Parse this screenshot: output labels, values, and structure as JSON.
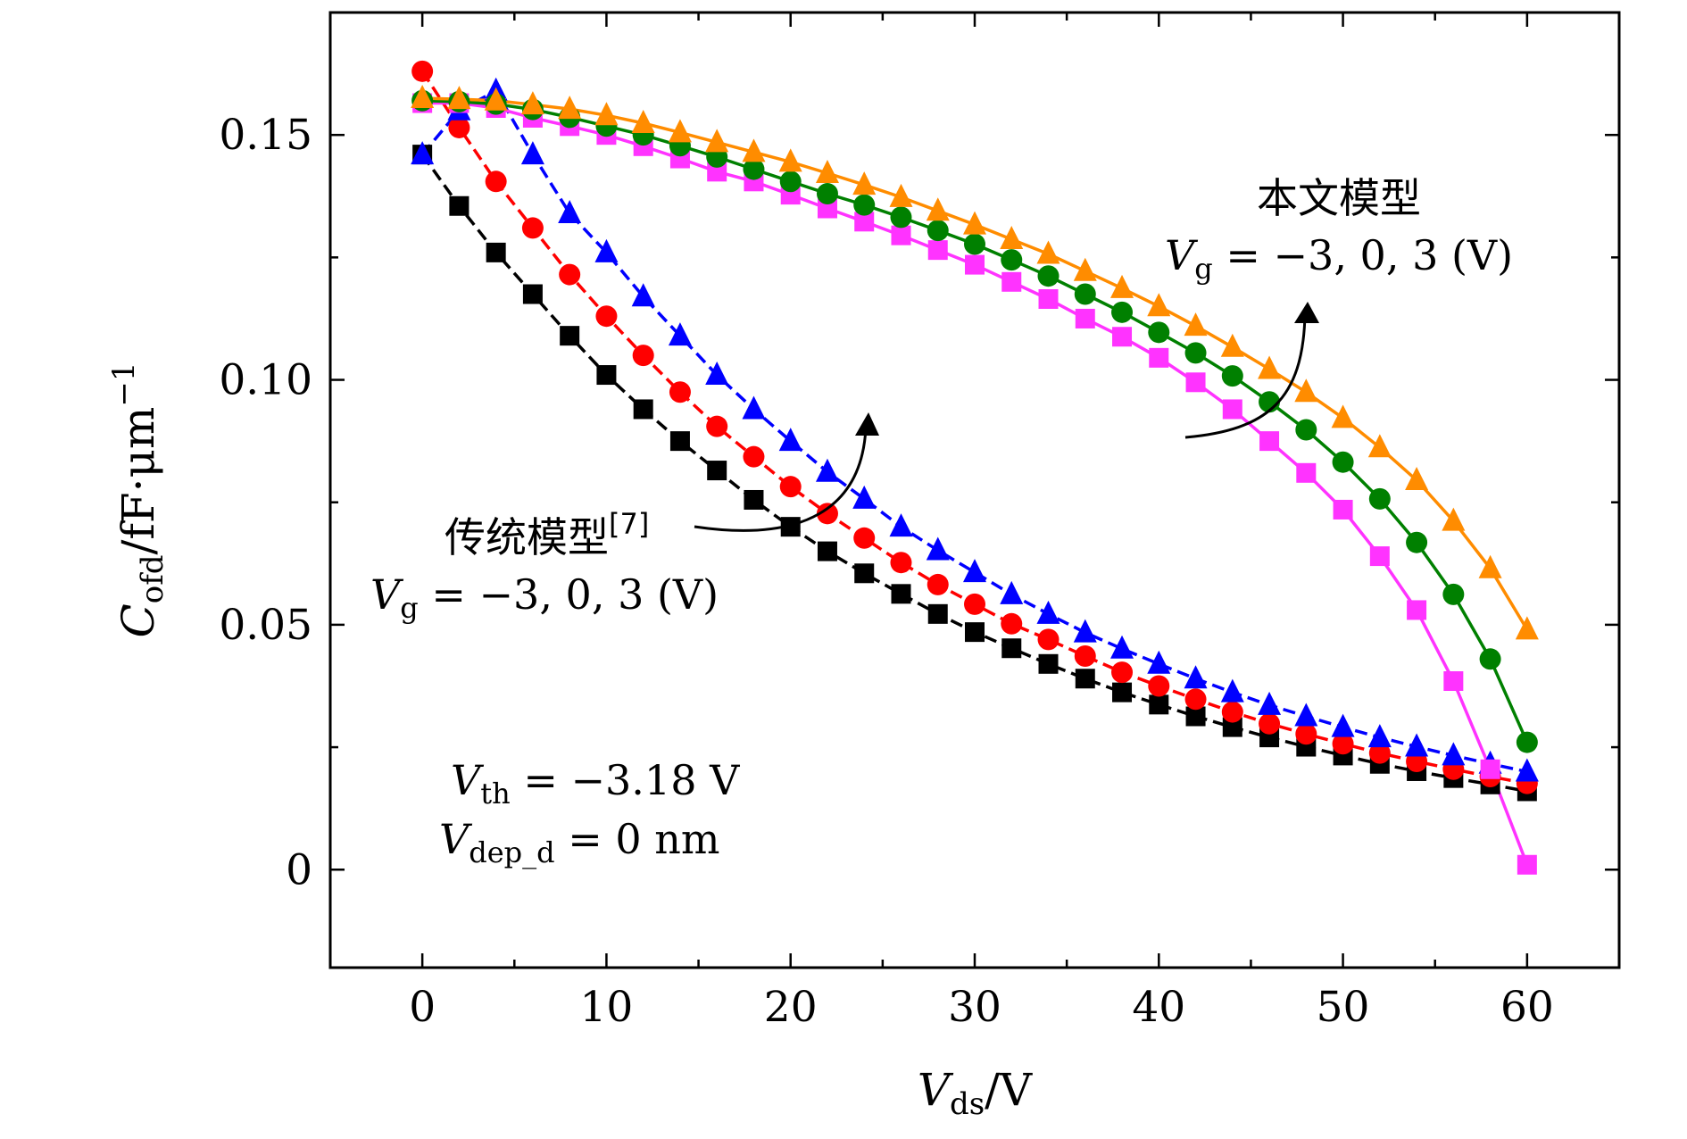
{
  "chart_data": {
    "type": "line",
    "xlabel": {
      "var": "V",
      "sub": "ds",
      "unit": "/V"
    },
    "ylabel": {
      "var": "C",
      "sub": "ofd",
      "unit": "/fF·μm",
      "sup": "−1"
    },
    "xlim": [
      -5,
      65
    ],
    "ylim": [
      -0.02,
      0.175
    ],
    "xticks": [
      0,
      10,
      20,
      30,
      40,
      50,
      60
    ],
    "xtick_labels": [
      "0",
      "10",
      "20",
      "30",
      "40",
      "50",
      "60"
    ],
    "yticks": [
      0,
      0.05,
      0.1,
      0.15
    ],
    "ytick_labels": [
      "0",
      "0.05",
      "0.10",
      "0.15"
    ],
    "x": [
      0,
      2,
      4,
      6,
      8,
      10,
      12,
      14,
      16,
      18,
      20,
      22,
      24,
      26,
      28,
      30,
      32,
      34,
      36,
      38,
      40,
      42,
      44,
      46,
      48,
      50,
      52,
      54,
      56,
      58,
      60
    ],
    "series": [
      {
        "group": "traditional",
        "marker": "square",
        "color": "#000000",
        "dash": true,
        "values": [
          0.146,
          0.1355,
          0.126,
          0.1175,
          0.109,
          0.101,
          0.094,
          0.0875,
          0.0815,
          0.0755,
          0.07,
          0.065,
          0.0605,
          0.0563,
          0.0522,
          0.0485,
          0.0452,
          0.042,
          0.039,
          0.0362,
          0.0337,
          0.0313,
          0.0291,
          0.027,
          0.0251,
          0.0233,
          0.0216,
          0.0201,
          0.0187,
          0.0174,
          0.016
        ]
      },
      {
        "group": "traditional",
        "marker": "circle",
        "color": "#ff0000",
        "dash": true,
        "values": [
          0.163,
          0.1515,
          0.1405,
          0.131,
          0.1215,
          0.113,
          0.105,
          0.0975,
          0.0905,
          0.0843,
          0.0782,
          0.0727,
          0.0677,
          0.0627,
          0.0582,
          0.0542,
          0.0502,
          0.047,
          0.0436,
          0.0403,
          0.0375,
          0.0348,
          0.0322,
          0.0298,
          0.0277,
          0.0257,
          0.0238,
          0.0221,
          0.0205,
          0.019,
          0.0176
        ]
      },
      {
        "group": "traditional",
        "marker": "triangle",
        "color": "#0000ff",
        "dash": true,
        "values": [
          0.146,
          0.155,
          0.159,
          0.146,
          0.134,
          0.126,
          0.117,
          0.109,
          0.101,
          0.094,
          0.0875,
          0.0812,
          0.0757,
          0.07,
          0.0652,
          0.0607,
          0.0562,
          0.0522,
          0.0484,
          0.0451,
          0.042,
          0.039,
          0.0362,
          0.0336,
          0.0313,
          0.0291,
          0.027,
          0.0251,
          0.0233,
          0.0216,
          0.02
        ]
      },
      {
        "group": "proposed",
        "marker": "square",
        "color": "#ff33ff",
        "dash": false,
        "values": [
          0.1565,
          0.1565,
          0.1555,
          0.1535,
          0.1518,
          0.15,
          0.1477,
          0.1452,
          0.1425,
          0.1405,
          0.1378,
          0.135,
          0.1323,
          0.1295,
          0.1265,
          0.1235,
          0.12,
          0.1165,
          0.1125,
          0.1088,
          0.1045,
          0.0995,
          0.094,
          0.0875,
          0.081,
          0.0735,
          0.064,
          0.053,
          0.0385,
          0.0205,
          0.001
        ]
      },
      {
        "group": "proposed",
        "marker": "circle",
        "color": "#008000",
        "dash": false,
        "values": [
          0.157,
          0.1568,
          0.1563,
          0.1552,
          0.1536,
          0.1518,
          0.15,
          0.1478,
          0.1455,
          0.143,
          0.1405,
          0.138,
          0.1357,
          0.1332,
          0.1305,
          0.1277,
          0.1245,
          0.1212,
          0.1175,
          0.1138,
          0.1097,
          0.1055,
          0.1008,
          0.0955,
          0.0898,
          0.0832,
          0.0757,
          0.0668,
          0.0562,
          0.043,
          0.026
        ]
      },
      {
        "group": "proposed",
        "marker": "triangle",
        "color": "#ff8c00",
        "dash": false,
        "values": [
          0.1575,
          0.1573,
          0.157,
          0.1562,
          0.1553,
          0.154,
          0.1524,
          0.1505,
          0.1485,
          0.1465,
          0.1445,
          0.1422,
          0.1398,
          0.1373,
          0.1345,
          0.1317,
          0.1287,
          0.1257,
          0.1222,
          0.1187,
          0.115,
          0.111,
          0.1067,
          0.1022,
          0.0975,
          0.0922,
          0.0862,
          0.0795,
          0.0712,
          0.0615,
          0.049
        ]
      }
    ],
    "annotations": {
      "traditional_label": "传统模型",
      "traditional_ref": "[7]",
      "traditional_vg": {
        "var": "V",
        "sub": "g",
        "text": " = −3, 0, 3 (V)"
      },
      "proposed_label": "本文模型",
      "proposed_vg": {
        "var": "V",
        "sub": "g",
        "text": " = −3, 0, 3 (V)"
      },
      "vth": {
        "var": "V",
        "sub": "th",
        "text": " = −3.18 V"
      },
      "vdep": {
        "var": "V",
        "sub": "dep_d",
        "text": " = 0 nm"
      }
    }
  }
}
